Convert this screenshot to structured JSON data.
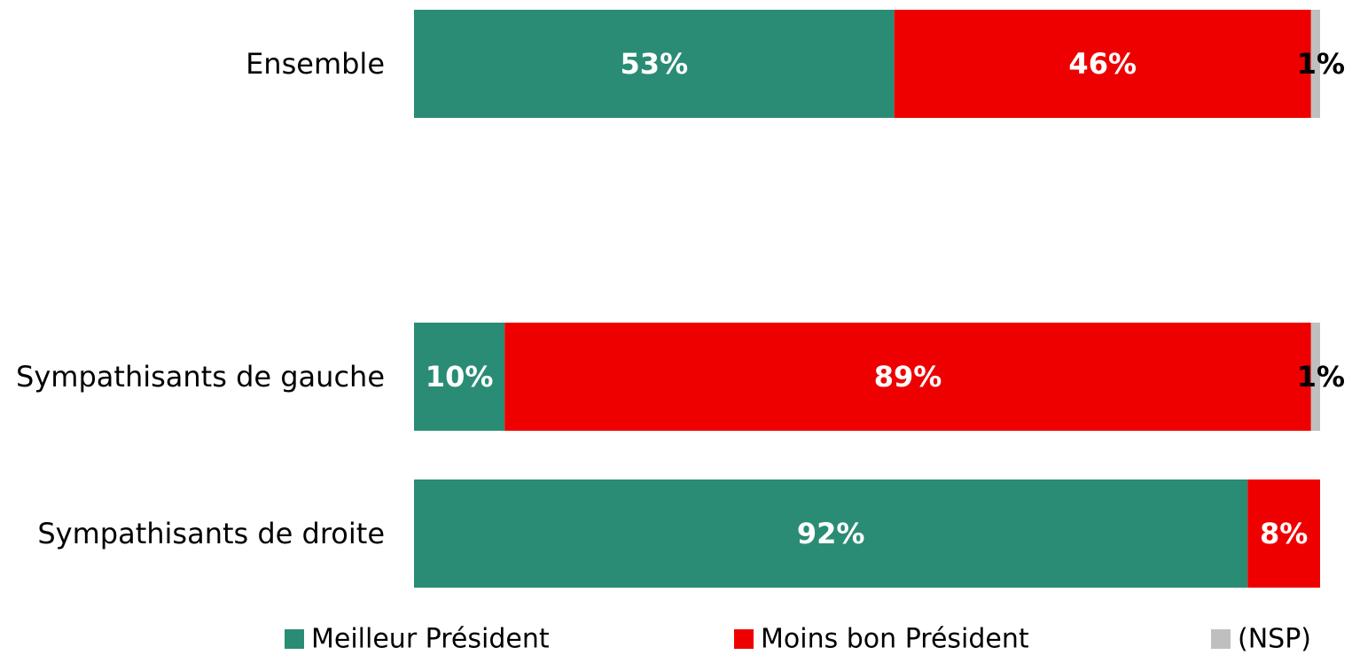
{
  "chart_data": {
    "type": "bar",
    "orientation": "horizontal",
    "stacked": true,
    "categories": [
      "Ensemble",
      "Sympathisants de gauche",
      "Sympathisants de droite"
    ],
    "series": [
      {
        "name": "Meilleur Président",
        "color": "#2a8c74",
        "values": [
          53,
          10,
          92
        ],
        "labels": [
          "53%",
          "10%",
          "92%"
        ]
      },
      {
        "name": "Moins bon Président",
        "color": "#ee0000",
        "values": [
          46,
          89,
          8
        ],
        "labels": [
          "46%",
          "89%",
          "8%"
        ]
      },
      {
        "name": "(NSP)",
        "color": "#bfbfbf",
        "values": [
          1,
          1,
          0
        ],
        "labels": [
          "1%",
          "1%",
          ""
        ]
      }
    ],
    "xlim": [
      0,
      100
    ],
    "grid": false,
    "legend_position": "bottom"
  }
}
